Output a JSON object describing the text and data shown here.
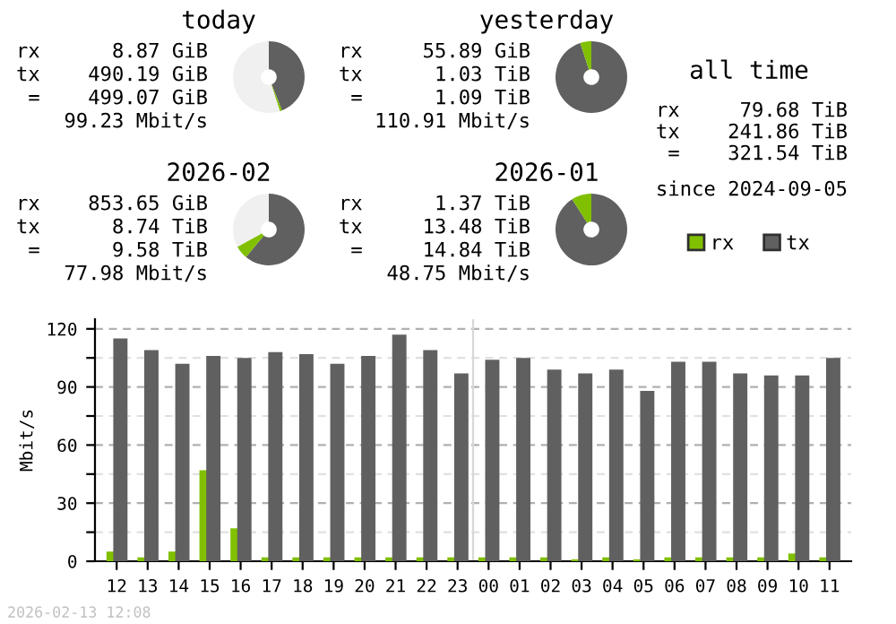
{
  "chart_data": [
    {
      "type": "donut",
      "title": "today",
      "categories": [
        null,
        null,
        null
      ],
      "values": [
        44,
        1,
        55
      ],
      "colors": [
        "#606060",
        "#80c000",
        "#f0f0f0"
      ],
      "annotations": [
        "rx      8.87 GiB",
        "tx    490.19 GiB",
        " =    499.07 GiB",
        "99.23 Mbit/s"
      ]
    },
    {
      "type": "donut",
      "title": "yesterday",
      "categories": [
        null,
        null
      ],
      "values": [
        95,
        5
      ],
      "colors": [
        "#606060",
        "#80c000"
      ],
      "annotations": [
        "rx     55.89 GiB",
        "tx      1.03 TiB",
        " =      1.09 TiB",
        "110.91 Mbit/s"
      ]
    },
    {
      "type": "other",
      "title": "all time",
      "annotations": [
        "rx     79.68 TiB",
        "tx    241.86 TiB",
        " =    321.54 TiB",
        "since 2024-09-05"
      ]
    },
    {
      "type": "donut",
      "title": "2026-02",
      "categories": [
        null,
        null,
        null
      ],
      "values": [
        61,
        6,
        33
      ],
      "colors": [
        "#606060",
        "#80c000",
        "#f0f0f0"
      ],
      "annotations": [
        "rx    853.65 GiB",
        "tx      8.74 TiB",
        " =      9.58 TiB",
        "77.98 Mbit/s"
      ]
    },
    {
      "type": "donut",
      "title": "2026-01",
      "categories": [
        null,
        null
      ],
      "values": [
        91,
        9
      ],
      "colors": [
        "#606060",
        "#80c000"
      ],
      "annotations": [
        "rx      1.37 TiB",
        "tx     13.48 TiB",
        " =     14.84 TiB",
        "48.75 Mbit/s"
      ]
    },
    {
      "type": "bar",
      "ylabel": "Mbit/s",
      "categories": [
        "12",
        "13",
        "14",
        "15",
        "16",
        "17",
        "18",
        "19",
        "20",
        "21",
        "22",
        "23",
        "00",
        "01",
        "02",
        "03",
        "04",
        "05",
        "06",
        "07",
        "08",
        "09",
        "10",
        "11"
      ],
      "series": [
        {
          "name": "rx",
          "color": "#80c000",
          "values": [
            5,
            2,
            5,
            47,
            17,
            2,
            2,
            2,
            2,
            2,
            2,
            2,
            2,
            2,
            2,
            1,
            2,
            1,
            2,
            2,
            2,
            2,
            4,
            2
          ]
        },
        {
          "name": "tx",
          "color": "#606060",
          "values": [
            115,
            109,
            102,
            106,
            105,
            108,
            107,
            102,
            106,
            117,
            109,
            97,
            104,
            105,
            99,
            97,
            99,
            88,
            103,
            103,
            97,
            96,
            96,
            105
          ]
        }
      ],
      "ylim": [
        0,
        125
      ],
      "yticks": [
        0,
        {
          "value": 15,
          "label": null
        },
        30,
        {
          "value": 45,
          "label": null
        },
        60,
        {
          "value": 75,
          "label": null
        },
        90,
        {
          "value": 105,
          "label": null
        },
        120
      ],
      "grid": "y",
      "legend": "top right",
      "ref_lines": [
        {
          "axis": "x",
          "value": "00",
          "color": "#d8d8d8"
        }
      ],
      "annotations": [
        "2026-02-13 12:08"
      ]
    }
  ]
}
